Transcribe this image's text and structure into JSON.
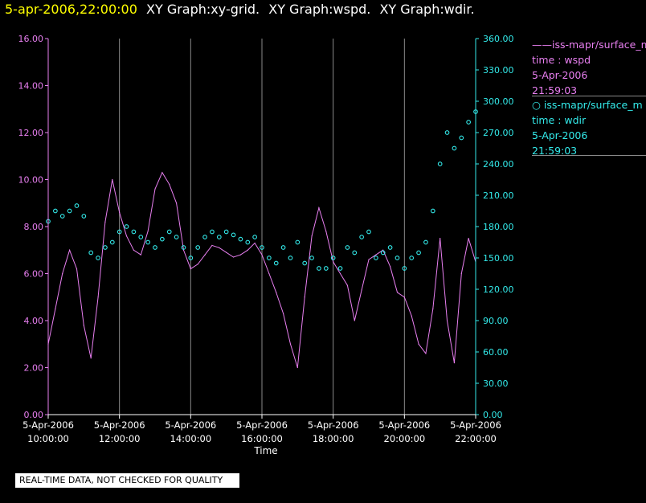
{
  "header": {
    "timestamp": "5-apr-2006,22:00:00",
    "graphs": [
      "XY Graph:xy-grid.",
      "XY Graph:wspd.",
      "XY Graph:wdir."
    ]
  },
  "legend": [
    {
      "line": "——iss-mapr/surface_m",
      "var": "time : wspd",
      "date": "5-Apr-2006",
      "time": "21:59:03",
      "color": "#e87ff0"
    },
    {
      "line": "○ iss-mapr/surface_m",
      "var": "time : wdir",
      "date": "5-Apr-2006",
      "time": "21:59:03",
      "color": "#33eaea"
    }
  ],
  "footer_note": "REAL-TIME DATA, NOT CHECKED FOR QUALITY",
  "chart_data": {
    "type": "line",
    "xlabel": "Time",
    "x_range_hours": [
      10,
      22
    ],
    "x_ticks": [
      {
        "hour": 10,
        "date": "5-Apr-2006",
        "time": "10:00:00"
      },
      {
        "hour": 12,
        "date": "5-Apr-2006",
        "time": "12:00:00"
      },
      {
        "hour": 14,
        "date": "5-Apr-2006",
        "time": "14:00:00"
      },
      {
        "hour": 16,
        "date": "5-Apr-2006",
        "time": "16:00:00"
      },
      {
        "hour": 18,
        "date": "5-Apr-2006",
        "time": "18:00:00"
      },
      {
        "hour": 20,
        "date": "5-Apr-2006",
        "time": "20:00:00"
      },
      {
        "hour": 22,
        "date": "5-Apr-2006",
        "time": "22:00:00"
      }
    ],
    "y_left": {
      "label": "wspd",
      "range": [
        0,
        16
      ],
      "ticks": [
        "0.00",
        "2.00",
        "4.00",
        "6.00",
        "8.00",
        "10.00",
        "12.00",
        "14.00",
        "16.00"
      ],
      "color": "#e87ff0"
    },
    "y_right": {
      "label": "wdir",
      "range": [
        0,
        360
      ],
      "ticks": [
        "0.00",
        "30.00",
        "60.00",
        "90.00",
        "120.00",
        "150.00",
        "180.00",
        "210.00",
        "240.00",
        "270.00",
        "300.00",
        "330.00",
        "360.00"
      ],
      "color": "#33eaea"
    },
    "grid": "vertical",
    "series": [
      {
        "name": "wspd",
        "style": "line",
        "axis": "left",
        "color": "#e87ff0",
        "x": [
          10.0,
          10.2,
          10.4,
          10.6,
          10.8,
          11.0,
          11.2,
          11.4,
          11.6,
          11.8,
          12.0,
          12.2,
          12.4,
          12.6,
          12.8,
          13.0,
          13.2,
          13.4,
          13.6,
          13.8,
          14.0,
          14.2,
          14.4,
          14.6,
          14.8,
          15.0,
          15.2,
          15.4,
          15.6,
          15.8,
          16.0,
          16.2,
          16.4,
          16.6,
          16.8,
          17.0,
          17.2,
          17.4,
          17.6,
          17.8,
          18.0,
          18.2,
          18.4,
          18.6,
          18.8,
          19.0,
          19.2,
          19.4,
          19.6,
          19.8,
          20.0,
          20.2,
          20.4,
          20.6,
          20.8,
          21.0,
          21.2,
          21.4,
          21.6,
          21.8,
          22.0
        ],
        "values": [
          3.0,
          4.5,
          6.0,
          7.0,
          6.2,
          3.8,
          2.4,
          5.0,
          8.2,
          10.0,
          8.6,
          7.6,
          7.0,
          6.8,
          7.8,
          9.6,
          10.3,
          9.8,
          9.0,
          7.0,
          6.2,
          6.4,
          6.8,
          7.2,
          7.1,
          6.9,
          6.7,
          6.8,
          7.0,
          7.3,
          6.8,
          6.0,
          5.2,
          4.3,
          3.0,
          2.0,
          5.0,
          7.6,
          8.8,
          7.8,
          6.5,
          6.0,
          5.5,
          4.0,
          5.3,
          6.6,
          6.8,
          7.0,
          6.3,
          5.2,
          5.0,
          4.2,
          3.0,
          2.6,
          4.5,
          7.5,
          4.0,
          2.2,
          6.0,
          7.5,
          6.5
        ]
      },
      {
        "name": "wdir",
        "style": "scatter",
        "axis": "right",
        "color": "#33eaea",
        "x": [
          10.0,
          10.2,
          10.4,
          10.6,
          10.8,
          11.0,
          11.2,
          11.4,
          11.6,
          11.8,
          12.0,
          12.2,
          12.4,
          12.6,
          12.8,
          13.0,
          13.2,
          13.4,
          13.6,
          13.8,
          14.0,
          14.2,
          14.4,
          14.6,
          14.8,
          15.0,
          15.2,
          15.4,
          15.6,
          15.8,
          16.0,
          16.2,
          16.4,
          16.6,
          16.8,
          17.0,
          17.2,
          17.4,
          17.6,
          17.8,
          18.0,
          18.2,
          18.4,
          18.6,
          18.8,
          19.0,
          19.2,
          19.4,
          19.6,
          19.8,
          20.0,
          20.2,
          20.4,
          20.6,
          20.8,
          21.0,
          21.2,
          21.4,
          21.6,
          21.8,
          22.0
        ],
        "values": [
          185,
          195,
          190,
          195,
          200,
          190,
          155,
          150,
          160,
          165,
          175,
          180,
          175,
          170,
          165,
          160,
          168,
          175,
          170,
          160,
          150,
          160,
          170,
          175,
          170,
          175,
          172,
          168,
          165,
          170,
          160,
          150,
          145,
          160,
          150,
          165,
          145,
          150,
          140,
          140,
          150,
          140,
          160,
          155,
          170,
          175,
          150,
          155,
          160,
          150,
          140,
          150,
          155,
          165,
          195,
          240,
          270,
          255,
          265,
          280,
          290
        ]
      }
    ]
  }
}
